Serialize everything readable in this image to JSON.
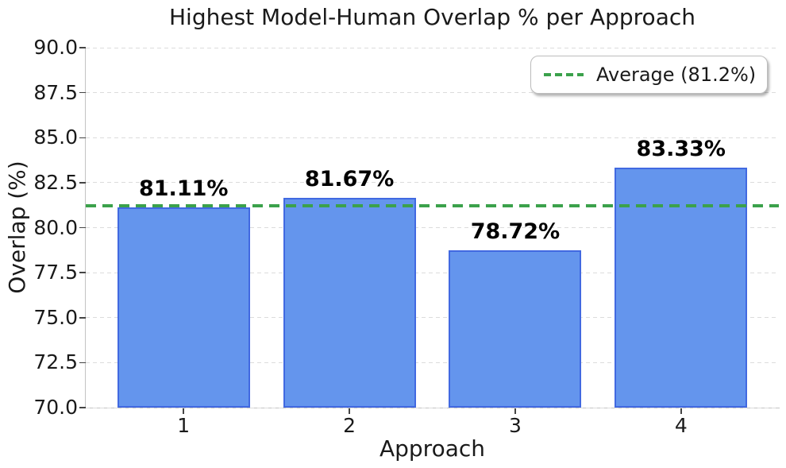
{
  "chart_data": {
    "type": "bar",
    "title": "Highest Model-Human Overlap % per Approach",
    "xlabel": "Approach",
    "ylabel": "Overlap (%)",
    "categories": [
      "1",
      "2",
      "3",
      "4"
    ],
    "values": [
      81.11,
      81.67,
      78.72,
      83.33
    ],
    "bar_labels": [
      "81.11%",
      "81.67%",
      "78.72%",
      "83.33%"
    ],
    "ylim": [
      70.0,
      90.0
    ],
    "yticks": [
      "70.0",
      "72.5",
      "75.0",
      "77.5",
      "80.0",
      "82.5",
      "85.0",
      "87.5",
      "90.0"
    ],
    "grid": "horizontal dashed",
    "average_line": {
      "value": 81.21,
      "label": "Average (81.2%)",
      "style": "dashed"
    },
    "legend": {
      "position": "upper right",
      "entries": [
        {
          "label": "Average (81.2%)",
          "marker": "green-dashed-line"
        }
      ]
    },
    "colors": {
      "bar_fill": "#6495ED",
      "bar_edge": "#4169E1",
      "average_line": "#3BA14B",
      "gridline": "#DCDCDC",
      "spine": "#C4C4C4",
      "tick": "#444444",
      "text": "#1A1A1A",
      "background": "#FFFFFF"
    }
  }
}
